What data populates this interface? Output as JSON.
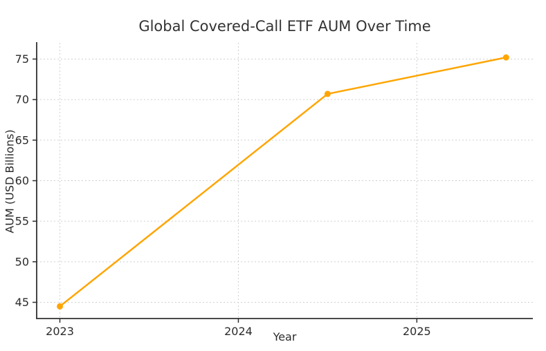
{
  "chart_data": {
    "type": "line",
    "title": "Global Covered-Call ETF AUM Over Time",
    "xlabel": "Year",
    "ylabel": "AUM (USD Billions)",
    "series": [
      {
        "name": "Global Covered-Call ETF AUM",
        "x": [
          2023.0,
          2024.5,
          2025.5
        ],
        "values": [
          44.5,
          70.7,
          75.2
        ]
      }
    ],
    "xticks": [
      2023,
      2024,
      2025
    ],
    "yticks": [
      45,
      50,
      55,
      60,
      65,
      70,
      75
    ],
    "xlim": [
      2022.87,
      2025.65
    ],
    "ylim": [
      43.0,
      77.0
    ],
    "grid": "dashed-both-axes",
    "legend": "none",
    "colors": {
      "line": "#FFA500",
      "marker": "#FFA500",
      "grid": "#cfcfcf",
      "spine": "#2f2f2f",
      "text": "#2b2b2b",
      "title_text": "#333333",
      "background": "#ffffff"
    }
  }
}
